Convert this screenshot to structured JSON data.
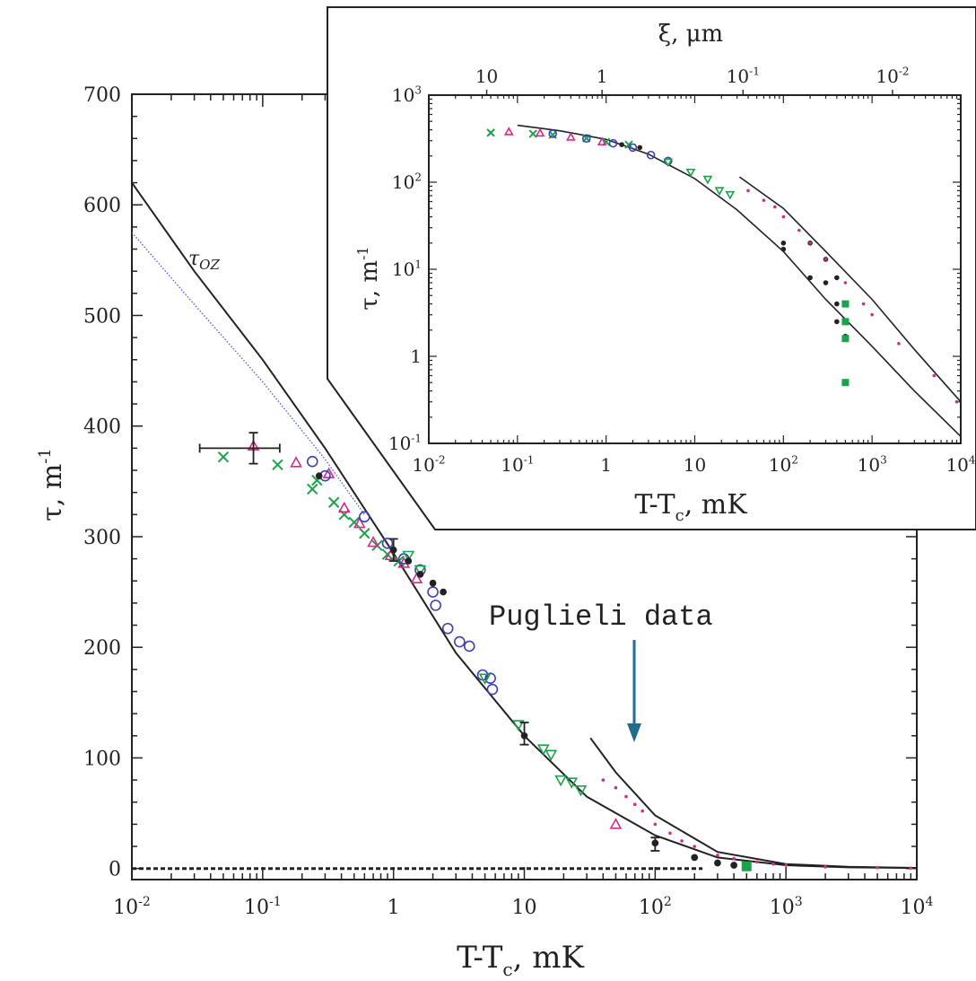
{
  "main": {
    "type": "scatter",
    "xscale": "log",
    "xlim": [
      0.01,
      10000
    ],
    "ylim": [
      -10,
      700
    ],
    "xlabel_base": "T-T",
    "xlabel_sub": "c",
    "xlabel_unit": ",  mK",
    "ylabel_base": "τ,  m",
    "ylabel_sup": "-1",
    "yticks": [
      "0",
      "100",
      "200",
      "300",
      "400",
      "500",
      "600",
      "700"
    ],
    "xticks": [
      {
        "b": "10",
        "e": "-2"
      },
      {
        "b": "10",
        "e": "-1"
      },
      {
        "b": "1",
        "e": ""
      },
      {
        "b": "10",
        "e": ""
      },
      {
        "b": "10",
        "e": "2"
      },
      {
        "b": "10",
        "e": "3"
      },
      {
        "b": "10",
        "e": "4"
      }
    ],
    "curve_label": "τ",
    "curve_label_sub": "OZ",
    "annotation": "Puglieli data",
    "colors": {
      "black": "#222222",
      "green": "#1aa34a",
      "magenta": "#d42a8c",
      "blue": "#3b3fb8",
      "dotted": "#4a5bd6",
      "arrow": "#1f6e8c"
    }
  },
  "inset": {
    "type": "scatter",
    "xscale": "log",
    "yscale": "log",
    "xlim": [
      0.01,
      10000
    ],
    "ylim": [
      0.1,
      1000
    ],
    "xlabel_base": "T-T",
    "xlabel_sub": "c",
    "xlabel_unit": ",  mK",
    "ylabel_base": "τ,  m",
    "ylabel_sup": "-1",
    "top_label": "ξ,  μm",
    "xticks": [
      {
        "b": "10",
        "e": "-2"
      },
      {
        "b": "10",
        "e": "-1"
      },
      {
        "b": "1",
        "e": ""
      },
      {
        "b": "10",
        "e": ""
      },
      {
        "b": "10",
        "e": "2"
      },
      {
        "b": "10",
        "e": "3"
      },
      {
        "b": "10",
        "e": "4"
      }
    ],
    "yticks": [
      {
        "b": "10",
        "e": "-1"
      },
      {
        "b": "1",
        "e": ""
      },
      {
        "b": "10",
        "e": "1"
      },
      {
        "b": "10",
        "e": "2"
      },
      {
        "b": "10",
        "e": "3"
      }
    ],
    "top_ticks": [
      {
        "b": "10",
        "e": ""
      },
      {
        "b": "1",
        "e": ""
      },
      {
        "b": "10",
        "e": "-1"
      },
      {
        "b": "10",
        "e": "-2"
      }
    ]
  },
  "chart_data": [
    {
      "type": "scatter",
      "xlabel": "T-Tc,  mK",
      "ylabel": "τ,  m-1",
      "xscale": "log",
      "xlim": [
        0.01,
        10000
      ],
      "ylim": [
        -10,
        700
      ],
      "lines": [
        {
          "name": "τOZ",
          "style": "solid",
          "points": [
            [
              0.01,
              620
            ],
            [
              0.03,
              540
            ],
            [
              0.1,
              460
            ],
            [
              0.3,
              380
            ],
            [
              1,
              285
            ],
            [
              3,
              195
            ],
            [
              10,
              120
            ],
            [
              30,
              65
            ],
            [
              100,
              30
            ],
            [
              300,
              10
            ],
            [
              1000,
              3
            ],
            [
              3000,
              1
            ],
            [
              10000,
              0.5
            ]
          ]
        },
        {
          "style": "dotted",
          "points": [
            [
              0.01,
              575
            ],
            [
              0.03,
              510
            ],
            [
              0.1,
              440
            ],
            [
              0.3,
              370
            ],
            [
              0.6,
              320
            ]
          ]
        },
        {
          "style": "solid",
          "points": [
            [
              32,
              118
            ],
            [
              50,
              87
            ],
            [
              100,
              48
            ],
            [
              300,
              15
            ],
            [
              1000,
              4
            ],
            [
              3000,
              1.5
            ],
            [
              10000,
              0.5
            ]
          ]
        },
        {
          "style": "dashed",
          "points": [
            [
              0.01,
              0
            ],
            [
              230,
              0
            ]
          ]
        }
      ],
      "points": [
        {
          "marker": "x",
          "color": "green",
          "data": [
            [
              0.05,
              372
            ],
            [
              0.13,
              365
            ],
            [
              0.24,
              343
            ],
            [
              0.26,
              351
            ],
            [
              0.35,
              331
            ],
            [
              0.42,
              320
            ],
            [
              0.5,
              313
            ],
            [
              0.6,
              303
            ],
            [
              0.75,
              292
            ],
            [
              0.9,
              284
            ],
            [
              1.1,
              278
            ]
          ]
        },
        {
          "marker": "triangle",
          "color": "magenta",
          "data": [
            [
              0.085,
              382
            ],
            [
              0.18,
              367
            ],
            [
              0.32,
              357
            ],
            [
              0.42,
              326
            ],
            [
              0.55,
              312
            ],
            [
              0.7,
              295
            ],
            [
              0.95,
              283
            ],
            [
              1.2,
              276
            ],
            [
              1.5,
              262
            ],
            [
              50,
              40
            ]
          ]
        },
        {
          "marker": "circle",
          "color": "blue",
          "data": [
            [
              0.24,
              368
            ],
            [
              0.3,
              355
            ],
            [
              0.6,
              318
            ],
            [
              0.9,
              294
            ],
            [
              1.2,
              280
            ],
            [
              1.6,
              270
            ],
            [
              2,
              250
            ],
            [
              2.1,
              238
            ],
            [
              2.6,
              217
            ],
            [
              3.2,
              205
            ],
            [
              3.8,
              201
            ],
            [
              4.8,
              175
            ],
            [
              5.5,
              172
            ],
            [
              5.7,
              162
            ]
          ]
        },
        {
          "marker": "triangle-down",
          "color": "green",
          "data": [
            [
              1.3,
              283
            ],
            [
              1.6,
              270
            ],
            [
              5,
              172
            ],
            [
              9,
              130
            ],
            [
              14,
              108
            ],
            [
              16,
              103
            ],
            [
              19,
              80
            ],
            [
              23,
              78
            ],
            [
              27,
              71
            ]
          ]
        },
        {
          "marker": "dot",
          "color": "black",
          "data": [
            [
              1,
              288
            ],
            [
              1.3,
              278
            ],
            [
              1.6,
              266
            ],
            [
              2,
              258
            ],
            [
              2.4,
              250
            ],
            [
              0.27,
              355
            ],
            [
              10,
              120
            ],
            [
              100,
              23
            ],
            [
              200,
              10
            ],
            [
              300,
              5
            ],
            [
              400,
              3
            ]
          ]
        },
        {
          "marker": "small-dot",
          "color": "magenta",
          "data": [
            [
              40,
              80
            ],
            [
              50,
              73
            ],
            [
              60,
              65
            ],
            [
              70,
              58
            ],
            [
              80,
              52
            ],
            [
              100,
              40
            ],
            [
              130,
              32
            ],
            [
              160,
              25
            ],
            [
              200,
              20
            ],
            [
              300,
              12
            ],
            [
              400,
              9
            ],
            [
              600,
              6
            ],
            [
              800,
              4
            ],
            [
              1000,
              3
            ],
            [
              2000,
              1.5
            ],
            [
              5000,
              0.8
            ],
            [
              9000,
              0.4
            ]
          ]
        },
        {
          "marker": "square",
          "color": "green",
          "data": [
            [
              500,
              2
            ]
          ]
        }
      ],
      "errorbars": [
        {
          "x": 0.085,
          "y": 380,
          "xerr": [
            0.033,
            0.135
          ],
          "yerr": [
            366,
            394
          ]
        },
        {
          "x": 1,
          "y": 290,
          "yerr": [
            278,
            298
          ]
        },
        {
          "x": 10,
          "y": 120,
          "yerr": [
            112,
            132
          ]
        },
        {
          "x": 100,
          "y": 22,
          "yerr": [
            16,
            28
          ]
        }
      ]
    },
    {
      "type": "scatter",
      "xlabel": "T-Tc,  mK",
      "ylabel": "τ,  m-1",
      "secondary_xlabel": "ξ,  μm",
      "xscale": "log",
      "yscale": "log",
      "xlim": [
        0.01,
        10000
      ],
      "ylim": [
        0.1,
        1000
      ],
      "lines": [
        {
          "style": "solid",
          "points": [
            [
              0.1,
              450
            ],
            [
              0.3,
              390
            ],
            [
              1,
              310
            ],
            [
              3,
              210
            ],
            [
              10,
              110
            ],
            [
              30,
              48
            ],
            [
              100,
              16
            ],
            [
              300,
              4.5
            ],
            [
              1000,
              1.3
            ],
            [
              3000,
              0.4
            ],
            [
              10000,
              0.12
            ]
          ]
        },
        {
          "style": "solid",
          "points": [
            [
              32,
              115
            ],
            [
              100,
              50
            ],
            [
              300,
              16
            ],
            [
              1000,
              4.5
            ],
            [
              3000,
              1.2
            ],
            [
              10000,
              0.3
            ]
          ]
        }
      ],
      "points": [
        {
          "marker": "x",
          "color": "green",
          "data": [
            [
              0.05,
              370
            ],
            [
              0.15,
              360
            ],
            [
              0.25,
              350
            ],
            [
              0.6,
              320
            ],
            [
              1,
              290
            ],
            [
              1.8,
              270
            ]
          ]
        },
        {
          "marker": "triangle",
          "color": "magenta",
          "data": [
            [
              0.08,
              380
            ],
            [
              0.18,
              367
            ],
            [
              0.4,
              330
            ],
            [
              0.9,
              290
            ]
          ]
        },
        {
          "marker": "circle",
          "color": "blue",
          "data": [
            [
              0.25,
              360
            ],
            [
              0.6,
              318
            ],
            [
              1.2,
              280
            ],
            [
              2,
              250
            ],
            [
              3.2,
              205
            ],
            [
              5,
              175
            ]
          ]
        },
        {
          "marker": "triangle-down",
          "color": "green",
          "data": [
            [
              5,
              170
            ],
            [
              9,
              130
            ],
            [
              14,
              108
            ],
            [
              19,
              80
            ],
            [
              25,
              72
            ]
          ]
        },
        {
          "marker": "dot",
          "color": "black",
          "data": [
            [
              1.5,
              270
            ],
            [
              2.4,
              250
            ],
            [
              100,
              20
            ],
            [
              100,
              17
            ],
            [
              200,
              20
            ],
            [
              200,
              8
            ],
            [
              300,
              13
            ],
            [
              300,
              7
            ],
            [
              400,
              8
            ],
            [
              400,
              4
            ],
            [
              400,
              2.5
            ],
            [
              500,
              1.7
            ]
          ]
        },
        {
          "marker": "small-dot",
          "color": "magenta",
          "data": [
            [
              40,
              80
            ],
            [
              60,
              62
            ],
            [
              80,
              52
            ],
            [
              100,
              40
            ],
            [
              150,
              28
            ],
            [
              200,
              20
            ],
            [
              300,
              13
            ],
            [
              500,
              7
            ],
            [
              800,
              4
            ],
            [
              1000,
              3
            ],
            [
              2000,
              1.4
            ],
            [
              5000,
              0.6
            ],
            [
              9000,
              0.3
            ]
          ]
        },
        {
          "marker": "square",
          "color": "green",
          "data": [
            [
              500,
              4
            ],
            [
              500,
              2.5
            ],
            [
              500,
              1.6
            ],
            [
              500,
              0.5
            ]
          ]
        }
      ]
    }
  ]
}
